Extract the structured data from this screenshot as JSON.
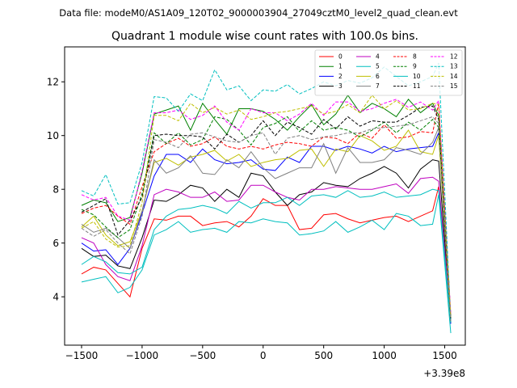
{
  "chart_data": {
    "type": "line",
    "suptitle": "Data file: modeM0/AS1A09_120T02_9000003904_27049cztM0_level2_quad_clean.evt",
    "title": "Quadrant 1 module wise count rates with 100.0s bins.",
    "xlabel": "",
    "ylabel": "",
    "x_offset_label": "+3.39e8",
    "xlim": [
      -1640,
      1670
    ],
    "ylim": [
      2.2,
      13.3
    ],
    "xticks": [
      -1500,
      -1000,
      -500,
      0,
      500,
      1000,
      1500
    ],
    "yticks": [
      4,
      6,
      8,
      10,
      12
    ],
    "grid": false,
    "legend_position": "top-right",
    "x": [
      -1500,
      -1400,
      -1300,
      -1200,
      -1100,
      -1000,
      -900,
      -800,
      -700,
      -600,
      -500,
      -400,
      -300,
      -200,
      -100,
      0,
      100,
      200,
      300,
      400,
      500,
      600,
      700,
      800,
      900,
      1000,
      1100,
      1200,
      1300,
      1400,
      1450,
      1550
    ],
    "series": [
      {
        "name": "0",
        "color": "#ff0000",
        "dashed": false,
        "values": [
          4.85,
          5.1,
          5.0,
          4.5,
          4.0,
          5.8,
          6.9,
          6.85,
          7.0,
          7.0,
          6.65,
          6.75,
          6.8,
          6.6,
          7.0,
          7.65,
          7.4,
          7.4,
          6.5,
          6.55,
          7.05,
          7.1,
          6.9,
          6.75,
          6.85,
          6.95,
          7.0,
          6.8,
          7.0,
          7.2,
          8.1,
          3.0
        ]
      },
      {
        "name": "1",
        "color": "#008000",
        "dashed": false,
        "values": [
          7.4,
          7.6,
          7.5,
          6.8,
          6.95,
          8.6,
          10.8,
          10.95,
          11.1,
          10.2,
          11.2,
          10.6,
          10.05,
          11.0,
          11.0,
          10.9,
          10.6,
          10.2,
          10.7,
          11.15,
          10.4,
          10.8,
          11.5,
          10.85,
          11.2,
          11.0,
          10.7,
          11.35,
          10.85,
          11.2,
          10.75,
          3.1
        ]
      },
      {
        "name": "2",
        "color": "#0000ff",
        "dashed": false,
        "values": [
          6.0,
          5.7,
          5.75,
          5.2,
          5.8,
          7.1,
          8.5,
          9.3,
          9.3,
          9.0,
          9.5,
          9.1,
          8.95,
          9.0,
          9.1,
          8.75,
          8.7,
          9.2,
          9.0,
          9.6,
          9.6,
          9.45,
          9.6,
          9.5,
          9.35,
          9.6,
          9.4,
          9.5,
          9.55,
          9.6,
          10.1,
          3.0
        ]
      },
      {
        "name": "3",
        "color": "#000000",
        "dashed": false,
        "values": [
          5.8,
          5.5,
          5.55,
          5.15,
          5.05,
          6.2,
          7.6,
          7.55,
          7.8,
          8.15,
          8.05,
          7.55,
          8.0,
          7.7,
          8.6,
          8.5,
          7.9,
          7.4,
          7.8,
          7.9,
          8.25,
          8.15,
          8.1,
          8.4,
          8.6,
          8.85,
          8.6,
          8.05,
          8.75,
          9.1,
          9.05,
          3.05
        ]
      },
      {
        "name": "4",
        "color": "#bf00bf",
        "dashed": false,
        "values": [
          6.2,
          6.0,
          5.2,
          4.75,
          4.6,
          5.9,
          7.8,
          8.0,
          7.9,
          7.7,
          7.7,
          7.9,
          7.55,
          7.6,
          8.15,
          8.15,
          7.9,
          7.7,
          7.6,
          8.0,
          8.0,
          8.1,
          8.05,
          8.0,
          8.0,
          8.1,
          8.2,
          7.85,
          8.4,
          8.45,
          8.3,
          3.2
        ]
      },
      {
        "name": "5",
        "color": "#00bfbf",
        "dashed": false,
        "values": [
          4.55,
          4.65,
          4.75,
          4.15,
          4.35,
          5.0,
          6.3,
          6.5,
          6.8,
          6.4,
          6.5,
          6.55,
          6.4,
          6.8,
          6.75,
          6.9,
          6.8,
          6.75,
          6.3,
          6.35,
          6.45,
          6.8,
          6.4,
          6.6,
          6.85,
          6.5,
          7.1,
          7.0,
          6.65,
          6.7,
          7.8,
          2.65
        ]
      },
      {
        "name": "6",
        "color": "#bfbf00",
        "dashed": false,
        "values": [
          6.6,
          7.0,
          6.3,
          5.9,
          6.05,
          7.2,
          9.0,
          9.15,
          8.9,
          9.2,
          9.3,
          9.45,
          9.05,
          9.3,
          8.85,
          9.0,
          9.1,
          9.15,
          9.45,
          9.5,
          8.85,
          9.5,
          9.4,
          10.0,
          9.8,
          9.45,
          9.6,
          10.2,
          9.4,
          9.3,
          10.0,
          3.1
        ]
      },
      {
        "name": "7",
        "color": "#808080",
        "dashed": false,
        "values": [
          6.7,
          6.4,
          6.55,
          6.2,
          5.8,
          7.2,
          9.1,
          8.6,
          8.8,
          9.25,
          8.6,
          8.55,
          9.1,
          8.8,
          9.4,
          8.8,
          8.4,
          8.6,
          8.8,
          8.8,
          9.7,
          8.6,
          9.55,
          9.0,
          9.0,
          9.1,
          9.55,
          9.45,
          9.3,
          9.75,
          10.3,
          3.2
        ]
      },
      {
        "name": "8",
        "color": "#ff0000",
        "dashed": true,
        "values": [
          7.1,
          7.3,
          7.4,
          7.0,
          6.7,
          8.1,
          9.4,
          9.7,
          9.9,
          9.6,
          9.7,
          9.95,
          9.6,
          9.5,
          9.6,
          9.5,
          9.65,
          9.75,
          9.7,
          9.6,
          9.95,
          9.9,
          9.7,
          10.1,
          9.9,
          10.4,
          9.9,
          9.95,
          10.15,
          10.1,
          11.2,
          3.3
        ]
      },
      {
        "name": "9",
        "color": "#008000",
        "dashed": true,
        "values": [
          7.25,
          7.05,
          6.6,
          6.2,
          6.5,
          7.85,
          10.1,
          9.7,
          10.1,
          9.65,
          9.85,
          10.7,
          10.6,
          10.2,
          9.65,
          10.3,
          10.45,
          10.7,
          10.15,
          10.55,
          10.2,
          10.3,
          10.2,
          9.95,
          10.2,
          10.5,
          10.1,
          10.5,
          10.2,
          10.6,
          10.3,
          3.2
        ]
      },
      {
        "name": "10",
        "color": "#00bfbf",
        "dashed": false,
        "values": [
          5.2,
          5.5,
          5.3,
          4.9,
          4.85,
          5.1,
          6.5,
          7.0,
          7.25,
          7.3,
          7.4,
          7.3,
          7.1,
          7.55,
          7.3,
          7.5,
          7.5,
          7.7,
          7.4,
          7.75,
          7.8,
          7.7,
          7.95,
          7.7,
          7.75,
          7.9,
          7.7,
          7.75,
          7.8,
          8.0,
          7.95,
          3.05
        ]
      },
      {
        "name": "11",
        "color": "#000000",
        "dashed": true,
        "values": [
          7.15,
          7.4,
          7.65,
          6.3,
          6.85,
          7.7,
          10.0,
          10.05,
          10.0,
          10.0,
          9.95,
          9.5,
          10.05,
          9.75,
          10.0,
          10.55,
          10.0,
          10.5,
          10.3,
          10.05,
          10.6,
          10.25,
          10.7,
          10.35,
          10.55,
          10.5,
          10.5,
          10.75,
          11.05,
          11.1,
          10.6,
          3.15
        ]
      },
      {
        "name": "12",
        "color": "#ff00ff",
        "dashed": true,
        "values": [
          7.8,
          7.6,
          7.7,
          7.0,
          6.85,
          8.7,
          10.85,
          10.85,
          10.95,
          10.6,
          10.75,
          11.1,
          10.5,
          10.2,
          11.0,
          10.85,
          10.85,
          10.55,
          10.8,
          11.2,
          10.75,
          11.25,
          11.25,
          10.9,
          11.0,
          11.2,
          11.35,
          11.05,
          11.25,
          10.95,
          11.3,
          3.35
        ]
      },
      {
        "name": "13",
        "color": "#00bfbf",
        "dashed": true,
        "values": [
          7.95,
          7.75,
          8.55,
          7.45,
          7.5,
          9.0,
          11.45,
          11.4,
          10.9,
          11.55,
          11.3,
          12.45,
          11.7,
          11.85,
          11.3,
          11.7,
          11.65,
          11.9,
          11.55,
          11.75,
          12.0,
          11.85,
          12.05,
          11.95,
          12.15,
          12.55,
          12.2,
          11.85,
          12.0,
          12.2,
          12.7,
          3.1
        ]
      },
      {
        "name": "14",
        "color": "#bfbf00",
        "dashed": true,
        "values": [
          6.55,
          6.8,
          6.15,
          5.85,
          5.9,
          7.5,
          10.75,
          10.75,
          10.55,
          11.2,
          10.85,
          11.05,
          10.8,
          10.95,
          10.6,
          10.7,
          10.85,
          10.9,
          11.0,
          11.1,
          10.8,
          10.9,
          11.15,
          10.85,
          11.5,
          11.0,
          11.3,
          10.95,
          11.0,
          11.2,
          11.15,
          3.25
        ]
      },
      {
        "name": "15",
        "color": "#808080",
        "dashed": true,
        "values": [
          6.55,
          6.25,
          6.5,
          6.0,
          5.6,
          7.0,
          9.85,
          9.75,
          9.55,
          10.05,
          10.1,
          9.95,
          9.8,
          9.75,
          10.0,
          10.1,
          9.3,
          9.9,
          10.0,
          9.85,
          9.95,
          10.0,
          10.1,
          10.1,
          10.25,
          10.3,
          10.35,
          10.4,
          10.55,
          10.7,
          10.45,
          3.1
        ]
      }
    ]
  }
}
